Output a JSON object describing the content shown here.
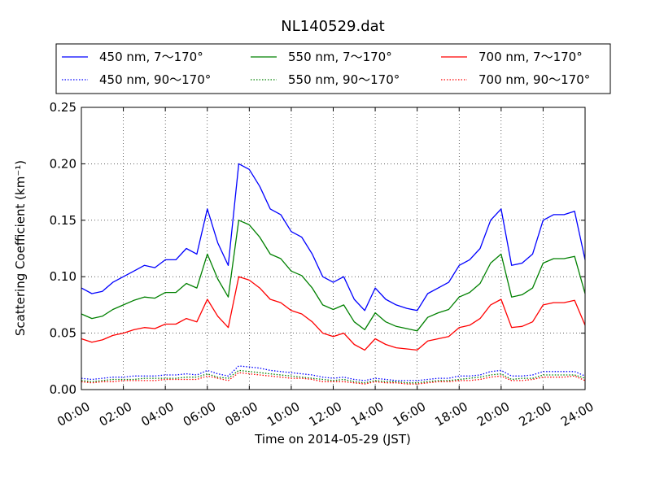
{
  "chart_data": {
    "type": "line",
    "title": "NL140529.dat",
    "xlabel": "Time on 2014-05-29 (JST)",
    "ylabel": "Scattering Coefficient (km⁻¹)",
    "xlim": [
      "00:00",
      "24:00"
    ],
    "ylim": [
      0,
      0.25
    ],
    "grid": true,
    "legend_position": "top",
    "x_ticks": [
      "00:00",
      "02:00",
      "04:00",
      "06:00",
      "08:00",
      "10:00",
      "12:00",
      "14:00",
      "16:00",
      "18:00",
      "20:00",
      "22:00",
      "24:00"
    ],
    "y_ticks": [
      "0.00",
      "0.05",
      "0.10",
      "0.15",
      "0.20",
      "0.25"
    ],
    "x": [
      "00:00",
      "00:30",
      "01:00",
      "01:30",
      "02:00",
      "02:30",
      "03:00",
      "03:30",
      "04:00",
      "04:30",
      "05:00",
      "05:30",
      "06:00",
      "06:30",
      "07:00",
      "07:30",
      "08:00",
      "08:30",
      "09:00",
      "09:30",
      "10:00",
      "10:30",
      "11:00",
      "11:30",
      "12:00",
      "12:30",
      "13:00",
      "13:30",
      "14:00",
      "14:30",
      "15:00",
      "15:30",
      "16:00",
      "16:30",
      "17:00",
      "17:30",
      "18:00",
      "18:30",
      "19:00",
      "19:30",
      "20:00",
      "20:30",
      "21:00",
      "21:30",
      "22:00",
      "22:30",
      "23:00",
      "23:30",
      "24:00"
    ],
    "series": [
      {
        "name": "450 nm, 7～170°",
        "color": "#0000ff",
        "style": "solid",
        "values": [
          0.09,
          0.085,
          0.087,
          0.095,
          0.1,
          0.105,
          0.11,
          0.108,
          0.115,
          0.115,
          0.125,
          0.12,
          0.16,
          0.13,
          0.11,
          0.2,
          0.195,
          0.18,
          0.16,
          0.155,
          0.14,
          0.135,
          0.12,
          0.1,
          0.095,
          0.1,
          0.08,
          0.07,
          0.09,
          0.08,
          0.075,
          0.072,
          0.07,
          0.085,
          0.09,
          0.095,
          0.11,
          0.115,
          0.125,
          0.15,
          0.16,
          0.11,
          0.112,
          0.12,
          0.15,
          0.155,
          0.155,
          0.158,
          0.115
        ]
      },
      {
        "name": "550 nm, 7～170°",
        "color": "#008000",
        "style": "solid",
        "values": [
          0.067,
          0.063,
          0.065,
          0.071,
          0.075,
          0.079,
          0.082,
          0.081,
          0.086,
          0.086,
          0.094,
          0.09,
          0.12,
          0.098,
          0.082,
          0.15,
          0.146,
          0.135,
          0.12,
          0.116,
          0.105,
          0.101,
          0.09,
          0.075,
          0.071,
          0.075,
          0.06,
          0.053,
          0.068,
          0.06,
          0.056,
          0.054,
          0.052,
          0.064,
          0.068,
          0.071,
          0.082,
          0.086,
          0.094,
          0.112,
          0.12,
          0.082,
          0.084,
          0.09,
          0.112,
          0.116,
          0.116,
          0.118,
          0.085
        ]
      },
      {
        "name": "700 nm, 7～170°",
        "color": "#ff0000",
        "style": "solid",
        "values": [
          0.045,
          0.042,
          0.044,
          0.048,
          0.05,
          0.053,
          0.055,
          0.054,
          0.058,
          0.058,
          0.063,
          0.06,
          0.08,
          0.065,
          0.055,
          0.1,
          0.097,
          0.09,
          0.08,
          0.077,
          0.07,
          0.067,
          0.06,
          0.05,
          0.047,
          0.05,
          0.04,
          0.035,
          0.045,
          0.04,
          0.037,
          0.036,
          0.035,
          0.043,
          0.045,
          0.047,
          0.055,
          0.057,
          0.063,
          0.075,
          0.08,
          0.055,
          0.056,
          0.06,
          0.075,
          0.077,
          0.077,
          0.079,
          0.057
        ]
      },
      {
        "name": "450 nm, 90～170°",
        "color": "#0000ff",
        "style": "dotted",
        "values": [
          0.01,
          0.009,
          0.01,
          0.011,
          0.011,
          0.012,
          0.012,
          0.012,
          0.013,
          0.013,
          0.014,
          0.013,
          0.017,
          0.014,
          0.012,
          0.021,
          0.02,
          0.019,
          0.017,
          0.016,
          0.015,
          0.014,
          0.013,
          0.011,
          0.01,
          0.011,
          0.009,
          0.008,
          0.01,
          0.009,
          0.008,
          0.008,
          0.008,
          0.009,
          0.01,
          0.01,
          0.012,
          0.012,
          0.013,
          0.016,
          0.017,
          0.012,
          0.012,
          0.013,
          0.016,
          0.016,
          0.016,
          0.016,
          0.012
        ]
      },
      {
        "name": "550 nm, 90～170°",
        "color": "#008000",
        "style": "dotted",
        "values": [
          0.008,
          0.007,
          0.008,
          0.009,
          0.009,
          0.009,
          0.01,
          0.01,
          0.01,
          0.01,
          0.011,
          0.011,
          0.014,
          0.011,
          0.01,
          0.017,
          0.016,
          0.015,
          0.014,
          0.013,
          0.012,
          0.011,
          0.01,
          0.009,
          0.008,
          0.009,
          0.007,
          0.006,
          0.008,
          0.007,
          0.007,
          0.006,
          0.006,
          0.007,
          0.008,
          0.008,
          0.009,
          0.01,
          0.011,
          0.013,
          0.014,
          0.009,
          0.01,
          0.01,
          0.013,
          0.013,
          0.013,
          0.013,
          0.01
        ]
      },
      {
        "name": "700 nm, 90～170°",
        "color": "#ff0000",
        "style": "dotted",
        "values": [
          0.007,
          0.006,
          0.007,
          0.007,
          0.008,
          0.008,
          0.008,
          0.008,
          0.009,
          0.009,
          0.009,
          0.009,
          0.012,
          0.01,
          0.008,
          0.015,
          0.014,
          0.013,
          0.012,
          0.011,
          0.01,
          0.01,
          0.009,
          0.007,
          0.007,
          0.007,
          0.006,
          0.005,
          0.007,
          0.006,
          0.006,
          0.005,
          0.005,
          0.006,
          0.007,
          0.007,
          0.008,
          0.008,
          0.009,
          0.011,
          0.012,
          0.008,
          0.008,
          0.009,
          0.011,
          0.011,
          0.011,
          0.012,
          0.008
        ]
      }
    ]
  }
}
